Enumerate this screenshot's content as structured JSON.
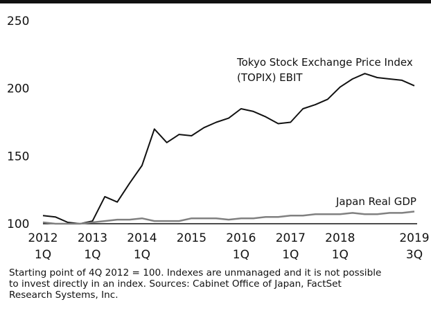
{
  "chart_data": {
    "type": "line",
    "title": "",
    "xlabel": "",
    "ylabel": "",
    "ylim": [
      100,
      250
    ],
    "y_ticks": [
      "250",
      "200",
      "150",
      "100"
    ],
    "y_tick_values": [
      250,
      200,
      150,
      100
    ],
    "x_ticks": [
      {
        "year": "2012",
        "quarter": "1Q",
        "x": 0
      },
      {
        "year": "2013",
        "quarter": "1Q",
        "x": 4
      },
      {
        "year": "2014",
        "quarter": "1Q",
        "x": 8
      },
      {
        "year": "2015",
        "quarter": "",
        "x": 12
      },
      {
        "year": "2016",
        "quarter": "1Q",
        "x": 16
      },
      {
        "year": "2017",
        "quarter": "1Q",
        "x": 20
      },
      {
        "year": "2018",
        "quarter": "1Q",
        "x": 24
      },
      {
        "year": "2019",
        "quarter": "3Q",
        "x": 30
      }
    ],
    "grid": false,
    "legend": "inline labels",
    "series": [
      {
        "name_lines": [
          "Tokyo Stock Exchange Price Index",
          "(TOPIX) EBIT"
        ],
        "color": "#111111",
        "values": [
          106,
          105,
          101,
          100,
          102,
          120,
          116,
          130,
          143,
          170,
          160,
          166,
          165,
          171,
          175,
          178,
          185,
          183,
          179,
          174,
          175,
          185,
          188,
          192,
          201,
          207,
          211,
          208,
          207,
          206,
          202
        ]
      },
      {
        "name_lines": [
          "Japan Real GDP"
        ],
        "color": "#808080",
        "values": [
          101,
          100,
          100,
          100,
          101,
          102,
          103,
          103,
          104,
          102,
          102,
          102,
          104,
          104,
          104,
          103,
          104,
          104,
          105,
          105,
          106,
          106,
          107,
          107,
          107,
          108,
          107,
          107,
          108,
          108,
          109
        ]
      }
    ]
  },
  "footnote": {
    "lines": [
      "Starting point of 4Q 2012 = 100. Indexes are unmanaged and it is not possible",
      "to invest directly in an index. Sources: Cabinet Office of Japan, FactSet",
      "Research Systems, Inc."
    ]
  }
}
